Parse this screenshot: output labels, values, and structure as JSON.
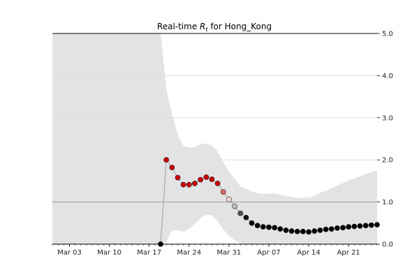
{
  "chart_data": {
    "type": "scatter",
    "title_prefix": "Real-time ",
    "title_symbol": "R",
    "title_subscript": "t",
    "title_suffix": " for Hong_Kong",
    "x_start": "2020-02-29",
    "x_end": "2020-04-26",
    "ylim": [
      0,
      5
    ],
    "y_ticks": [
      0,
      1,
      2,
      3,
      4,
      5
    ],
    "y_tick_labels": [
      "0.0",
      "1.0",
      "2.0",
      "3.0",
      "4.0",
      "5.0"
    ],
    "y_axis_side": "right",
    "x_tick_labels": [
      {
        "date": "2020-03-03",
        "label": "Mar 03"
      },
      {
        "date": "2020-03-10",
        "label": "Mar 10"
      },
      {
        "date": "2020-03-17",
        "label": "Mar 17"
      },
      {
        "date": "2020-03-24",
        "label": "Mar 24"
      },
      {
        "date": "2020-03-31",
        "label": "Mar 31"
      },
      {
        "date": "2020-04-07",
        "label": "Apr 07"
      },
      {
        "date": "2020-04-14",
        "label": "Apr 14"
      },
      {
        "date": "2020-04-21",
        "label": "Apr 21"
      }
    ],
    "grid": true,
    "reference_line": 1.0,
    "band_color": "#e3e3e3",
    "line_color": "#aaaaaa",
    "color_high": "#cc0000",
    "color_mid": "#ffffff",
    "color_low": "#000000",
    "points": [
      {
        "date": "2020-03-19",
        "rt": 0.0
      },
      {
        "date": "2020-03-20",
        "rt": 2.0
      },
      {
        "date": "2020-03-21",
        "rt": 1.82
      },
      {
        "date": "2020-03-22",
        "rt": 1.58
      },
      {
        "date": "2020-03-23",
        "rt": 1.41
      },
      {
        "date": "2020-03-24",
        "rt": 1.41
      },
      {
        "date": "2020-03-25",
        "rt": 1.44
      },
      {
        "date": "2020-03-26",
        "rt": 1.53
      },
      {
        "date": "2020-03-27",
        "rt": 1.59
      },
      {
        "date": "2020-03-28",
        "rt": 1.54
      },
      {
        "date": "2020-03-29",
        "rt": 1.44
      },
      {
        "date": "2020-03-30",
        "rt": 1.24
      },
      {
        "date": "2020-03-31",
        "rt": 1.06
      },
      {
        "date": "2020-04-01",
        "rt": 0.9
      },
      {
        "date": "2020-04-02",
        "rt": 0.73
      },
      {
        "date": "2020-04-03",
        "rt": 0.63
      },
      {
        "date": "2020-04-04",
        "rt": 0.5
      },
      {
        "date": "2020-04-05",
        "rt": 0.44
      },
      {
        "date": "2020-04-06",
        "rt": 0.41
      },
      {
        "date": "2020-04-07",
        "rt": 0.4
      },
      {
        "date": "2020-04-08",
        "rt": 0.39
      },
      {
        "date": "2020-04-09",
        "rt": 0.36
      },
      {
        "date": "2020-04-10",
        "rt": 0.33
      },
      {
        "date": "2020-04-11",
        "rt": 0.31
      },
      {
        "date": "2020-04-12",
        "rt": 0.3
      },
      {
        "date": "2020-04-13",
        "rt": 0.3
      },
      {
        "date": "2020-04-14",
        "rt": 0.29
      },
      {
        "date": "2020-04-15",
        "rt": 0.31
      },
      {
        "date": "2020-04-16",
        "rt": 0.33
      },
      {
        "date": "2020-04-17",
        "rt": 0.35
      },
      {
        "date": "2020-04-18",
        "rt": 0.36
      },
      {
        "date": "2020-04-19",
        "rt": 0.38
      },
      {
        "date": "2020-04-20",
        "rt": 0.39
      },
      {
        "date": "2020-04-21",
        "rt": 0.41
      },
      {
        "date": "2020-04-22",
        "rt": 0.42
      },
      {
        "date": "2020-04-23",
        "rt": 0.43
      },
      {
        "date": "2020-04-24",
        "rt": 0.44
      },
      {
        "date": "2020-04-25",
        "rt": 0.45
      },
      {
        "date": "2020-04-26",
        "rt": 0.46
      }
    ],
    "interval": [
      {
        "date": "2020-02-29",
        "low": 0.0,
        "high": 5.0
      },
      {
        "date": "2020-03-19",
        "low": 0.0,
        "high": 5.0
      },
      {
        "date": "2020-03-20",
        "low": 0.05,
        "high": 3.68
      },
      {
        "date": "2020-03-21",
        "low": 0.33,
        "high": 3.1
      },
      {
        "date": "2020-03-22",
        "low": 0.33,
        "high": 2.6
      },
      {
        "date": "2020-03-23",
        "low": 0.29,
        "high": 2.33
      },
      {
        "date": "2020-03-24",
        "low": 0.36,
        "high": 2.29
      },
      {
        "date": "2020-03-25",
        "low": 0.49,
        "high": 2.31
      },
      {
        "date": "2020-03-26",
        "low": 0.62,
        "high": 2.37
      },
      {
        "date": "2020-03-27",
        "low": 0.7,
        "high": 2.39
      },
      {
        "date": "2020-03-28",
        "low": 0.69,
        "high": 2.34
      },
      {
        "date": "2020-03-29",
        "low": 0.55,
        "high": 2.2
      },
      {
        "date": "2020-03-30",
        "low": 0.35,
        "high": 1.94
      },
      {
        "date": "2020-03-31",
        "low": 0.2,
        "high": 1.72
      },
      {
        "date": "2020-04-01",
        "low": 0.09,
        "high": 1.55
      },
      {
        "date": "2020-04-02",
        "low": 0.02,
        "high": 1.37
      },
      {
        "date": "2020-04-03",
        "low": 0.0,
        "high": 1.32
      },
      {
        "date": "2020-04-04",
        "low": 0.0,
        "high": 1.25
      },
      {
        "date": "2020-04-05",
        "low": 0.0,
        "high": 1.21
      },
      {
        "date": "2020-04-06",
        "low": 0.0,
        "high": 1.19
      },
      {
        "date": "2020-04-07",
        "low": 0.0,
        "high": 1.2
      },
      {
        "date": "2020-04-08",
        "low": 0.0,
        "high": 1.2
      },
      {
        "date": "2020-04-09",
        "low": 0.0,
        "high": 1.17
      },
      {
        "date": "2020-04-10",
        "low": 0.0,
        "high": 1.14
      },
      {
        "date": "2020-04-11",
        "low": 0.0,
        "high": 1.12
      },
      {
        "date": "2020-04-12",
        "low": 0.0,
        "high": 1.1
      },
      {
        "date": "2020-04-13",
        "low": 0.0,
        "high": 1.1
      },
      {
        "date": "2020-04-14",
        "low": 0.0,
        "high": 1.1
      },
      {
        "date": "2020-04-15",
        "low": 0.0,
        "high": 1.15
      },
      {
        "date": "2020-04-16",
        "low": 0.0,
        "high": 1.22
      },
      {
        "date": "2020-04-17",
        "low": 0.0,
        "high": 1.26
      },
      {
        "date": "2020-04-18",
        "low": 0.0,
        "high": 1.33
      },
      {
        "date": "2020-04-19",
        "low": 0.0,
        "high": 1.39
      },
      {
        "date": "2020-04-20",
        "low": 0.0,
        "high": 1.45
      },
      {
        "date": "2020-04-21",
        "low": 0.0,
        "high": 1.51
      },
      {
        "date": "2020-04-22",
        "low": 0.0,
        "high": 1.56
      },
      {
        "date": "2020-04-23",
        "low": 0.0,
        "high": 1.61
      },
      {
        "date": "2020-04-24",
        "low": 0.0,
        "high": 1.66
      },
      {
        "date": "2020-04-25",
        "low": 0.0,
        "high": 1.7
      },
      {
        "date": "2020-04-26",
        "low": 0.0,
        "high": 1.75
      }
    ]
  }
}
